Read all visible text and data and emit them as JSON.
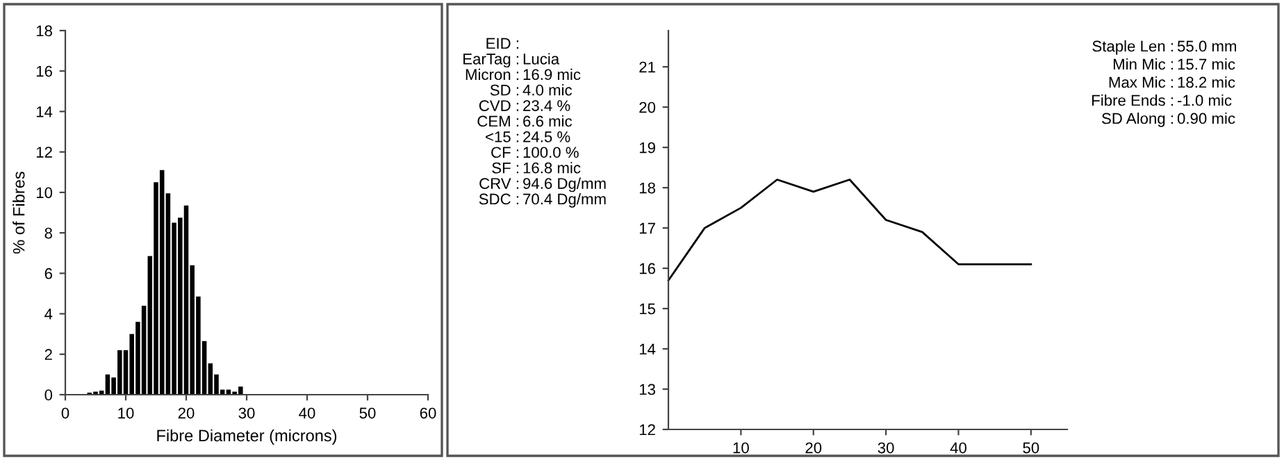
{
  "chart_data": [
    {
      "type": "histogram",
      "xlabel": "Fibre Diameter (microns)",
      "ylabel": "% of Fibres",
      "color": "#000000",
      "bins": [
        3.5,
        4.5,
        5.5,
        6.5,
        7.5,
        8.5,
        9.5,
        10.5,
        11.5,
        12.5,
        13.5,
        14.5,
        15.5,
        16.5,
        17.5,
        18.5,
        19.5,
        20.5,
        21.5,
        22.5,
        23.5,
        24.5,
        25.5,
        26.5,
        27.5,
        28.5,
        29.5
      ],
      "values": [
        0.1,
        0.15,
        0.2,
        1.0,
        0.85,
        2.2,
        2.2,
        3.0,
        3.6,
        4.4,
        6.85,
        10.5,
        11.1,
        9.95,
        8.5,
        8.75,
        9.35,
        6.4,
        4.85,
        2.65,
        1.55,
        1.0,
        0.25,
        0.25,
        0.15,
        0.4
      ],
      "xlim": [
        0,
        60
      ],
      "xticks": [
        0,
        10,
        20,
        30,
        40,
        50,
        60
      ],
      "ylim": [
        0,
        18
      ],
      "yticks": [
        0,
        2,
        4,
        6,
        8,
        10,
        12,
        14,
        16,
        18
      ],
      "grid": false,
      "legend": false,
      "annotations": [
        "EID :",
        "EarTag : Lucia",
        "Micron :  16.9 mic",
        "SD :    4.0 mic",
        "CVD :  23.4 %",
        "CEM :    6.6 mic",
        "<15 :  24.5 %",
        "CF : 100.0 %",
        "SF :  16.8 mic",
        "CRV :  94.6 Dg/mm",
        "SDC :  70.4 Dg/mm"
      ]
    },
    {
      "type": "line",
      "color": "#000000",
      "x": [
        0,
        5,
        10,
        15,
        20,
        25,
        30,
        35,
        40,
        45,
        50
      ],
      "values": [
        15.7,
        17.0,
        17.5,
        18.2,
        17.9,
        18.2,
        17.2,
        16.9,
        16.1,
        16.1,
        16.1
      ],
      "xlim": [
        0,
        55
      ],
      "xticks": [
        10,
        20,
        30,
        40,
        50
      ],
      "ylim": [
        12,
        21.9
      ],
      "yticks": [
        12,
        13,
        14,
        15,
        16,
        17,
        18,
        19,
        20,
        21
      ],
      "grid": false,
      "legend": false,
      "marker": "none",
      "line_style": "solid",
      "annotations": [
        "Staple Len :  55.0 mm",
        "Min Mic :  15.7 mic",
        "Max Mic :  18.2 mic",
        "Fibre Ends :  -1.0 mic",
        "SD Along :  0.90 mic"
      ]
    }
  ]
}
